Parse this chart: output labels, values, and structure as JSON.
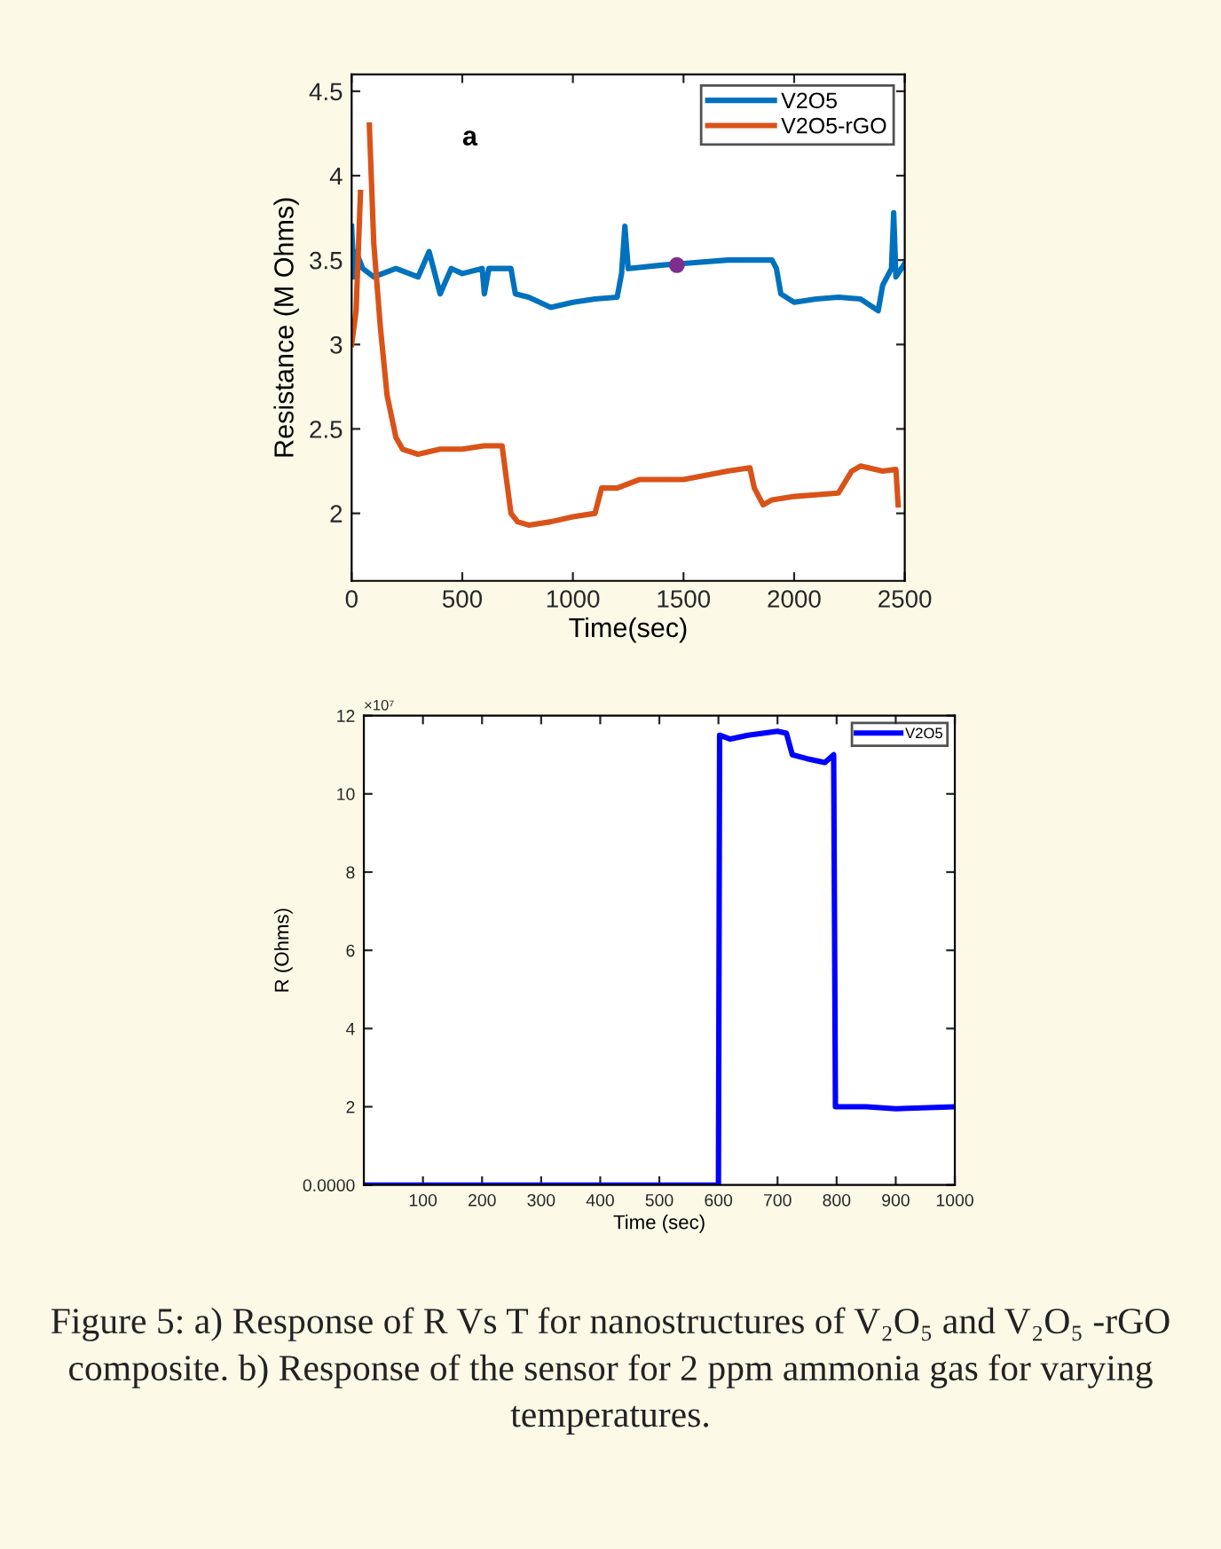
{
  "chart_data": [
    {
      "type": "line",
      "xlabel": "Time(sec)",
      "ylabel": "Resistance (M Ohms)",
      "annotations": [
        "a"
      ],
      "xlim": [
        0,
        2500
      ],
      "ylim": [
        1.6,
        4.6
      ],
      "xticks": [
        0,
        500,
        1000,
        1500,
        2000,
        2500
      ],
      "yticks": [
        2,
        2.5,
        3,
        3.5,
        4,
        4.5
      ],
      "grid": false,
      "legend": "top right",
      "series": [
        {
          "name": "V2O5",
          "color": "#0072bd",
          "x": [
            0,
            10,
            20,
            50,
            100,
            200,
            300,
            350,
            400,
            450,
            500,
            590,
            600,
            620,
            700,
            720,
            740,
            800,
            900,
            1000,
            1100,
            1200,
            1220,
            1235,
            1250,
            1400,
            1500,
            1700,
            1900,
            1920,
            1940,
            2000,
            2100,
            2200,
            2300,
            2380,
            2400,
            2440,
            2450,
            2460,
            2500
          ],
          "values": [
            3.7,
            3.4,
            3.55,
            3.45,
            3.4,
            3.45,
            3.4,
            3.55,
            3.3,
            3.45,
            3.42,
            3.45,
            3.3,
            3.45,
            3.45,
            3.45,
            3.3,
            3.28,
            3.22,
            3.25,
            3.27,
            3.28,
            3.42,
            3.7,
            3.45,
            3.47,
            3.48,
            3.5,
            3.5,
            3.45,
            3.3,
            3.25,
            3.27,
            3.28,
            3.27,
            3.2,
            3.35,
            3.45,
            3.78,
            3.4,
            3.48
          ]
        },
        {
          "name": "V2O5-rGO",
          "color": "#d95319",
          "x": [
            0,
            20,
            40,
            50,
            70,
            80,
            100,
            130,
            160,
            200,
            230,
            300,
            400,
            500,
            600,
            680,
            700,
            720,
            750,
            800,
            900,
            1000,
            1100,
            1130,
            1200,
            1300,
            1500,
            1700,
            1800,
            1820,
            1860,
            1900,
            2000,
            2200,
            2260,
            2300,
            2400,
            2460,
            2470
          ],
          "values": [
            3.0,
            3.2,
            3.9,
            null,
            null,
            4.3,
            3.6,
            3.1,
            2.7,
            2.45,
            2.38,
            2.35,
            2.38,
            2.38,
            2.4,
            2.4,
            2.2,
            2.0,
            1.95,
            1.93,
            1.95,
            1.98,
            2.0,
            2.15,
            2.15,
            2.2,
            2.2,
            2.25,
            2.27,
            2.15,
            2.05,
            2.08,
            2.1,
            2.12,
            2.25,
            2.28,
            2.25,
            2.26,
            2.05
          ]
        },
        {
          "type": "scatter",
          "color": "#7e2f8e",
          "marker": "circle",
          "x": [
            1470
          ],
          "values": [
            3.47
          ]
        }
      ]
    },
    {
      "type": "line",
      "xlabel": "Time (sec)",
      "ylabel": "R (Ohms)",
      "annotations": [
        "×10⁷",
        "Figure 5: a) Response of R Vs T for nanostructures of V₂O₅ and V₂O₅ -rGO composite. b) Response of the sensor for 2 ppm ammonia gas for varying temperatures."
      ],
      "xlim": [
        0,
        1000
      ],
      "ylim": [
        0,
        12
      ],
      "xticks": [
        100,
        200,
        300,
        400,
        500,
        600,
        700,
        800,
        900,
        1000
      ],
      "yticks": [
        {
          "value": 0,
          "label": "0.0000"
        },
        2,
        4,
        6,
        8,
        10,
        12
      ],
      "grid": false,
      "legend": "top right",
      "series": [
        {
          "name": "V2O5",
          "color": "#0000ff",
          "x": [
            0,
            100,
            200,
            300,
            400,
            500,
            600,
            602,
            620,
            650,
            700,
            715,
            725,
            750,
            780,
            795,
            798,
            850,
            900,
            1000
          ],
          "values": [
            0,
            0,
            0,
            0,
            0,
            0,
            0,
            11.5,
            11.4,
            11.5,
            11.6,
            11.55,
            11.0,
            10.9,
            10.8,
            11.0,
            2.0,
            2.0,
            1.95,
            2.0
          ]
        }
      ]
    }
  ]
}
